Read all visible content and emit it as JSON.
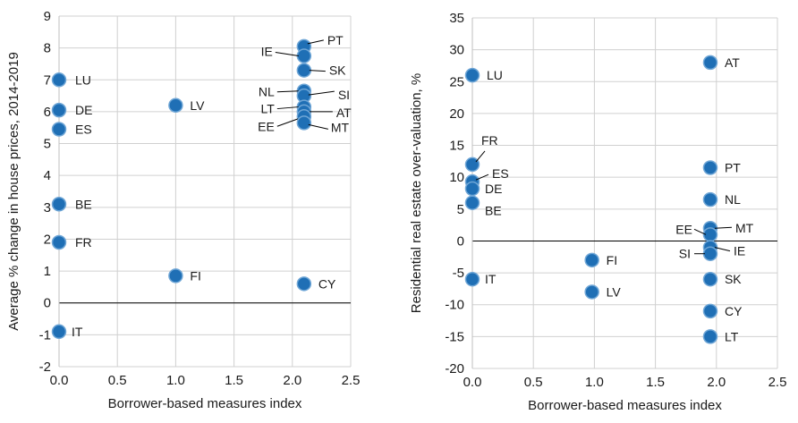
{
  "chart_data": [
    {
      "type": "scatter",
      "title": "",
      "xlabel": "Borrower-based measures index",
      "ylabel": "Average % change in house prices, 2014-2019",
      "xlim": [
        0,
        2.5
      ],
      "ylim": [
        -2,
        9
      ],
      "x_ticks": [
        "0.0",
        "0.5",
        "1.0",
        "1.5",
        "2.0",
        "2.5"
      ],
      "y_ticks": [
        "-2",
        "-1",
        "0",
        "1",
        "2",
        "3",
        "4",
        "5",
        "6",
        "7",
        "8",
        "9"
      ],
      "grid": true,
      "points": [
        {
          "label": "LU",
          "x": 0.0,
          "y": 7.0
        },
        {
          "label": "DE",
          "x": 0.0,
          "y": 6.05
        },
        {
          "label": "ES",
          "x": 0.0,
          "y": 5.45
        },
        {
          "label": "BE",
          "x": 0.0,
          "y": 3.1
        },
        {
          "label": "FR",
          "x": 0.0,
          "y": 1.9
        },
        {
          "label": "IT",
          "x": 0.0,
          "y": -0.9
        },
        {
          "label": "LV",
          "x": 1.0,
          "y": 6.2
        },
        {
          "label": "FI",
          "x": 1.0,
          "y": 0.85
        },
        {
          "label": "PT",
          "x": 2.1,
          "y": 8.05
        },
        {
          "label": "IE",
          "x": 2.1,
          "y": 7.75
        },
        {
          "label": "SK",
          "x": 2.1,
          "y": 7.3
        },
        {
          "label": "NL",
          "x": 2.1,
          "y": 6.65
        },
        {
          "label": "SI",
          "x": 2.1,
          "y": 6.5
        },
        {
          "label": "LT",
          "x": 2.1,
          "y": 6.15
        },
        {
          "label": "AT",
          "x": 2.1,
          "y": 6.0
        },
        {
          "label": "EE",
          "x": 2.1,
          "y": 5.85
        },
        {
          "label": "MT",
          "x": 2.1,
          "y": 5.65
        },
        {
          "label": "CY",
          "x": 2.1,
          "y": 0.6
        }
      ]
    },
    {
      "type": "scatter",
      "title": "",
      "xlabel": "Borrower-based measures index",
      "ylabel": "Residential real estate over-valuation, %",
      "xlim": [
        0,
        2.5
      ],
      "ylim": [
        -20,
        35
      ],
      "x_ticks": [
        "0.0",
        "0.5",
        "1.0",
        "1.5",
        "2.0",
        "2.5"
      ],
      "y_ticks": [
        "-20",
        "-15",
        "-10",
        "-5",
        "0",
        "5",
        "10",
        "15",
        "20",
        "25",
        "30",
        "35"
      ],
      "grid": true,
      "points": [
        {
          "label": "LU",
          "x": 0.0,
          "y": 26.0
        },
        {
          "label": "FR",
          "x": 0.0,
          "y": 12.0
        },
        {
          "label": "ES",
          "x": 0.0,
          "y": 9.3
        },
        {
          "label": "DE",
          "x": 0.0,
          "y": 8.2
        },
        {
          "label": "BE",
          "x": 0.0,
          "y": 6.0
        },
        {
          "label": "IT",
          "x": 0.0,
          "y": -6.0
        },
        {
          "label": "FI",
          "x": 0.98,
          "y": -3.0
        },
        {
          "label": "LV",
          "x": 0.98,
          "y": -8.0
        },
        {
          "label": "AT",
          "x": 1.95,
          "y": 28.0
        },
        {
          "label": "PT",
          "x": 1.95,
          "y": 11.5
        },
        {
          "label": "NL",
          "x": 1.95,
          "y": 6.5
        },
        {
          "label": "MT",
          "x": 1.95,
          "y": 2.0
        },
        {
          "label": "EE",
          "x": 1.95,
          "y": 1.0
        },
        {
          "label": "IE",
          "x": 1.95,
          "y": -1.0
        },
        {
          "label": "SI",
          "x": 1.95,
          "y": -2.0
        },
        {
          "label": "SK",
          "x": 1.95,
          "y": -6.0
        },
        {
          "label": "CY",
          "x": 1.95,
          "y": -11.0
        },
        {
          "label": "LT",
          "x": 1.95,
          "y": -15.0
        }
      ]
    }
  ]
}
